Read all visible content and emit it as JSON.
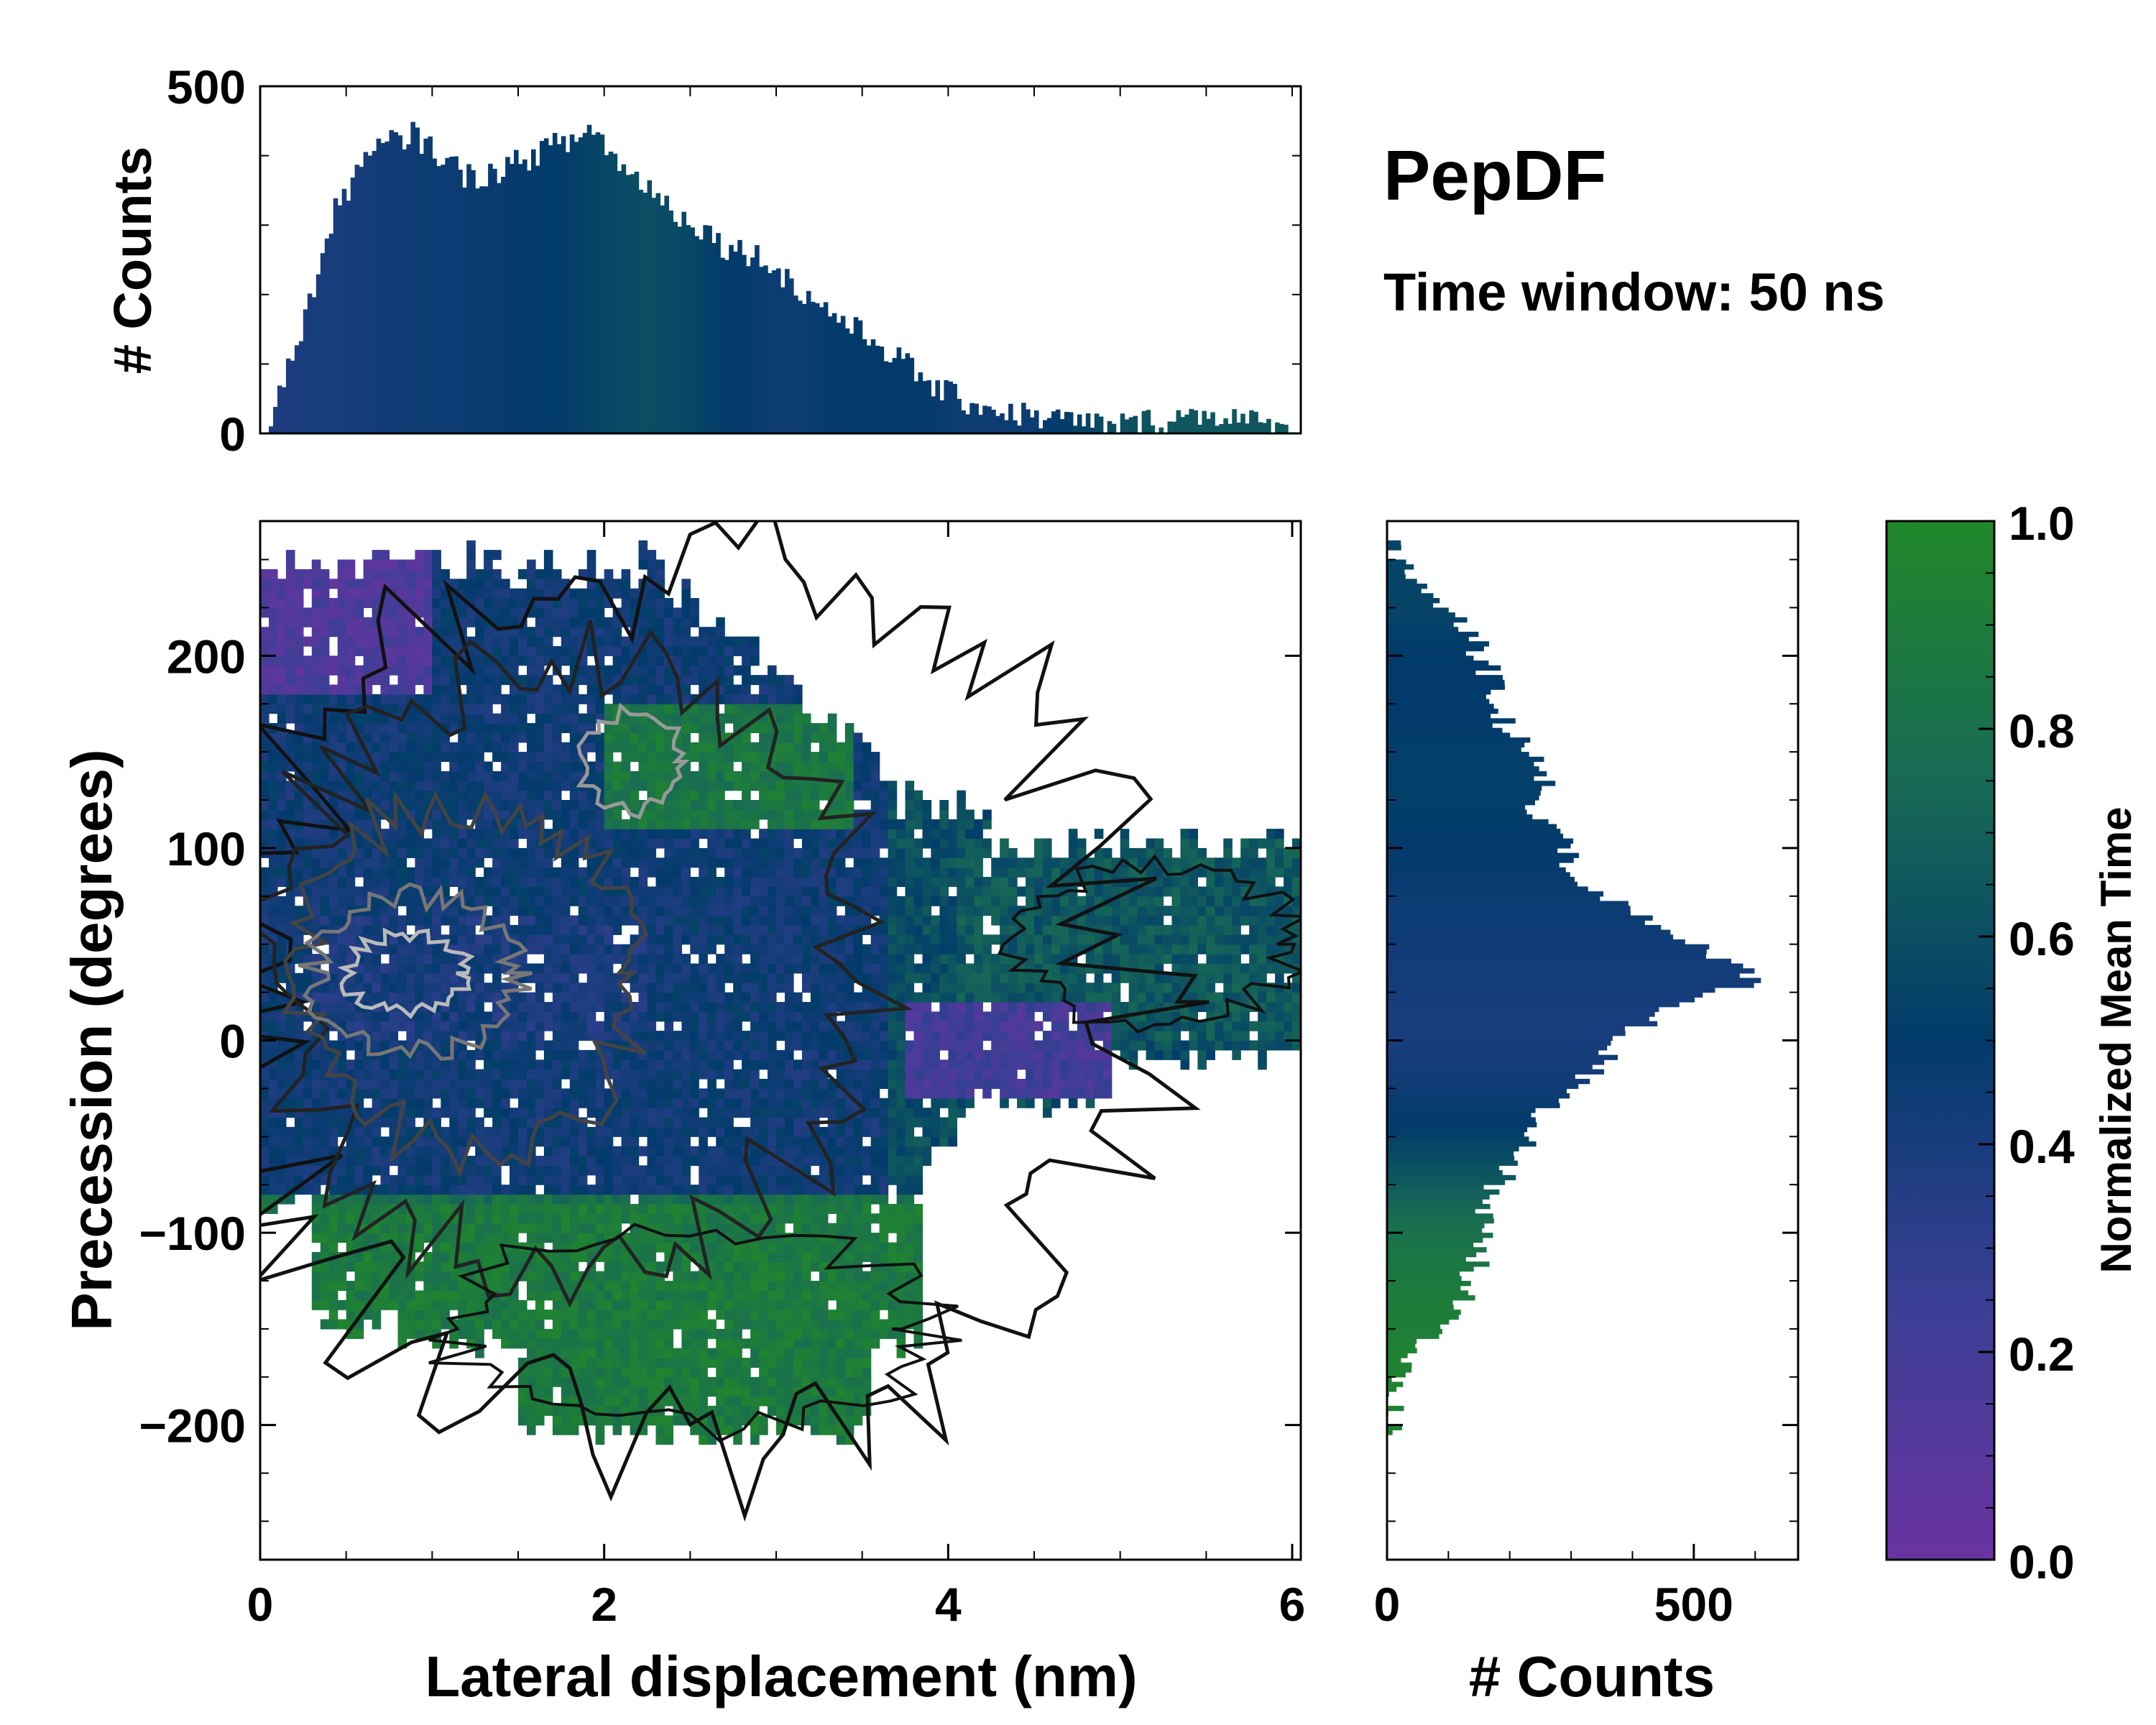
{
  "title": "PepDF",
  "subtitle": "Time window: 50 ns",
  "colors": {
    "low": "#6a33a0",
    "mid": "#023b6b",
    "high": "#21882a"
  },
  "chart_data": [
    {
      "id": "joint",
      "type": "heatmap",
      "description_role": "2D histogram colored by normalized mean time with density contours",
      "xlabel": "Lateral displacement (nm)",
      "ylabel": "Precession (degrees)",
      "xlim": [
        0,
        6.05
      ],
      "ylim": [
        -270,
        270
      ],
      "xticks": [
        "0",
        "2",
        "4",
        "6"
      ],
      "xtick_values": [
        0,
        2,
        4,
        6
      ],
      "yticks": [
        "−200",
        "−100",
        "0",
        "100",
        "200"
      ],
      "ytick_values": [
        -200,
        -100,
        0,
        100,
        200
      ],
      "bin_size": {
        "x": 0.05,
        "y": 5
      },
      "regions": [
        {
          "name": "upper-left purple",
          "x": [
            0,
            1.0
          ],
          "y": [
            180,
            250
          ],
          "mean_time": 0.15
        },
        {
          "name": "center peak",
          "x": [
            0.3,
            2.2
          ],
          "y": [
            0,
            60
          ],
          "mean_time": 0.4
        },
        {
          "name": "upper-mid green",
          "x": [
            2.0,
            3.4
          ],
          "y": [
            110,
            170
          ],
          "mean_time": 0.85
        },
        {
          "name": "right arm teal",
          "x": [
            4.0,
            6.0
          ],
          "y": [
            0,
            100
          ],
          "mean_time": 0.65
        },
        {
          "name": "lower-right purple",
          "x": [
            3.7,
            4.9
          ],
          "y": [
            -30,
            15
          ],
          "mean_time": 0.2
        },
        {
          "name": "lower green lobe",
          "x": [
            0.2,
            3.8
          ],
          "y": [
            -210,
            -90
          ],
          "mean_time": 0.88
        }
      ]
    },
    {
      "id": "top-marginal",
      "type": "bar",
      "xlabel": "",
      "ylabel": "# Counts",
      "xlim": [
        0,
        6.05
      ],
      "ylim": [
        0,
        500
      ],
      "yticks": [
        "0",
        "500"
      ],
      "ytick_values": [
        0,
        500
      ],
      "x": [
        0.025,
        0.15,
        0.3,
        0.45,
        0.6,
        0.75,
        0.9,
        1.05,
        1.2,
        1.35,
        1.5,
        1.65,
        1.8,
        1.95,
        2.1,
        2.25,
        2.4,
        2.55,
        2.7,
        2.85,
        3.0,
        3.15,
        3.3,
        3.45,
        3.6,
        3.75,
        3.9,
        4.05,
        4.2,
        4.35,
        4.5,
        4.65,
        4.8,
        4.95,
        5.1,
        5.25,
        5.4,
        5.55,
        5.7,
        5.85,
        5.95
      ],
      "values": [
        5,
        80,
        200,
        330,
        390,
        420,
        430,
        400,
        370,
        375,
        390,
        410,
        420,
        440,
        380,
        360,
        320,
        300,
        270,
        260,
        240,
        200,
        180,
        150,
        130,
        100,
        70,
        50,
        40,
        30,
        25,
        20,
        15,
        10,
        15,
        20,
        25,
        30,
        20,
        10,
        3
      ],
      "mean_time": [
        0.36,
        0.38,
        0.4,
        0.4,
        0.42,
        0.43,
        0.45,
        0.45,
        0.46,
        0.47,
        0.48,
        0.5,
        0.52,
        0.55,
        0.58,
        0.6,
        0.58,
        0.55,
        0.5,
        0.48,
        0.45,
        0.45,
        0.48,
        0.5,
        0.5,
        0.5,
        0.48,
        0.45,
        0.45,
        0.45,
        0.45,
        0.5,
        0.55,
        0.6,
        0.62,
        0.65,
        0.65,
        0.65,
        0.65,
        0.65,
        0.65
      ]
    },
    {
      "id": "right-marginal",
      "type": "bar",
      "orientation": "horizontal",
      "xlabel": "# Counts",
      "xlim": [
        0,
        670
      ],
      "xticks": [
        "0",
        "500"
      ],
      "xtick_values": [
        0,
        500
      ],
      "ylim": [
        -270,
        270
      ],
      "y": [
        255,
        240,
        225,
        210,
        195,
        180,
        165,
        150,
        135,
        120,
        105,
        90,
        75,
        60,
        45,
        30,
        15,
        0,
        -15,
        -30,
        -45,
        -60,
        -75,
        -90,
        -105,
        -120,
        -135,
        -150,
        -165,
        -180,
        -195,
        -210
      ],
      "values": [
        5,
        30,
        80,
        140,
        160,
        170,
        190,
        220,
        260,
        240,
        300,
        290,
        350,
        440,
        530,
        600,
        460,
        380,
        340,
        290,
        240,
        210,
        180,
        160,
        160,
        140,
        120,
        80,
        40,
        20,
        8,
        2
      ],
      "mean_time": [
        0.55,
        0.55,
        0.55,
        0.52,
        0.5,
        0.5,
        0.5,
        0.52,
        0.52,
        0.52,
        0.5,
        0.48,
        0.46,
        0.45,
        0.43,
        0.42,
        0.4,
        0.4,
        0.42,
        0.46,
        0.5,
        0.58,
        0.66,
        0.75,
        0.82,
        0.86,
        0.9,
        0.92,
        0.95,
        0.95,
        0.95,
        0.95
      ]
    },
    {
      "id": "colorbar",
      "type": "colorbar",
      "label": "Normalized Mean Time",
      "range": [
        0,
        1
      ],
      "ticks": [
        "0.0",
        "0.2",
        "0.4",
        "0.6",
        "0.8",
        "1.0"
      ],
      "tick_values": [
        0,
        0.2,
        0.4,
        0.6,
        0.8,
        1.0
      ]
    }
  ]
}
